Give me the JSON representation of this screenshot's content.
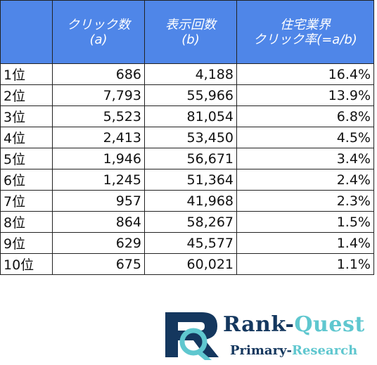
{
  "chart_data": {
    "type": "table",
    "columns": [
      {
        "line1": "",
        "line2": ""
      },
      {
        "line1": "クリック数",
        "line2": "(a)"
      },
      {
        "line1": "表示回数",
        "line2": "(b)"
      },
      {
        "line1": "住宅業界",
        "line2": "クリック率(=a/b)"
      }
    ],
    "rows": [
      {
        "rank": "1位",
        "clicks": "686",
        "impressions": "4,188",
        "ctr": "16.4%"
      },
      {
        "rank": "2位",
        "clicks": "7,793",
        "impressions": "55,966",
        "ctr": "13.9%"
      },
      {
        "rank": "3位",
        "clicks": "5,523",
        "impressions": "81,054",
        "ctr": "6.8%"
      },
      {
        "rank": "4位",
        "clicks": "2,413",
        "impressions": "53,450",
        "ctr": "4.5%"
      },
      {
        "rank": "5位",
        "clicks": "1,946",
        "impressions": "56,671",
        "ctr": "3.4%"
      },
      {
        "rank": "6位",
        "clicks": "1,245",
        "impressions": "51,364",
        "ctr": "2.4%"
      },
      {
        "rank": "7位",
        "clicks": "957",
        "impressions": "41,968",
        "ctr": "2.3%"
      },
      {
        "rank": "8位",
        "clicks": "864",
        "impressions": "58,267",
        "ctr": "1.5%"
      },
      {
        "rank": "9位",
        "clicks": "629",
        "impressions": "45,577",
        "ctr": "1.4%"
      },
      {
        "rank": "10位",
        "clicks": "675",
        "impressions": "60,021",
        "ctr": "1.1%"
      }
    ],
    "header_color": "#4f86e8"
  },
  "logo": {
    "brand_a": "Rank-",
    "brand_b": "Quest",
    "tagline_a": "Primary-",
    "tagline_b": "Research",
    "colors": {
      "navy": "#14375e",
      "teal": "#5fc7cf"
    }
  }
}
